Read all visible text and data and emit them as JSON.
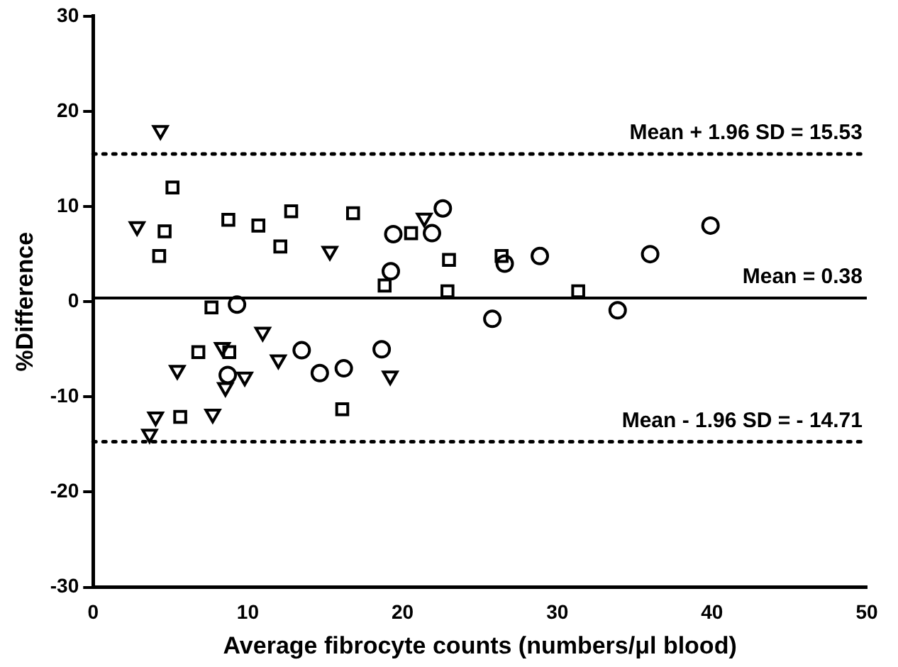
{
  "chart_data": {
    "type": "scatter",
    "xlabel": "Average fibrocyte counts (numbers/μl blood)",
    "ylabel": "%Difference",
    "xlim": [
      0,
      50
    ],
    "xticks": [
      0,
      10,
      20,
      30,
      40,
      50
    ],
    "ylim": [
      -30,
      30
    ],
    "yticks": [
      -30,
      -20,
      -10,
      0,
      10,
      20,
      30
    ],
    "grid": false,
    "legend": false,
    "series": [
      {
        "marker": "triangle",
        "color": "#000000",
        "x": [
          4.35,
          2.84,
          15.3,
          21.4,
          10.96,
          5.44,
          8.35,
          8.55,
          9.8,
          11.97,
          19.2,
          7.73,
          4.04,
          3.65
        ],
        "values": [
          18.0,
          7.9,
          5.3,
          8.8,
          -3.2,
          -7.2,
          -4.8,
          -9.0,
          -7.9,
          -6.1,
          -7.8,
          -11.8,
          -12.1,
          -13.9
        ]
      },
      {
        "marker": "square",
        "color": "#000000",
        "x": [
          5.13,
          4.62,
          4.27,
          8.74,
          10.68,
          12.8,
          16.8,
          12.1,
          20.55,
          18.84,
          23.0,
          22.9,
          26.4,
          31.35,
          7.65,
          6.8,
          8.8,
          5.63,
          16.1
        ],
        "values": [
          12.0,
          7.4,
          4.8,
          8.6,
          8.0,
          9.5,
          9.3,
          5.8,
          7.2,
          1.7,
          4.4,
          1.1,
          4.8,
          1.1,
          -0.6,
          -5.3,
          -5.3,
          -12.1,
          -11.3
        ]
      },
      {
        "marker": "circle",
        "color": "#000000",
        "x": [
          9.3,
          8.7,
          13.48,
          14.65,
          16.2,
          18.65,
          19.24,
          19.4,
          21.9,
          22.6,
          26.6,
          28.87,
          25.8,
          33.9,
          36.0,
          39.9
        ],
        "values": [
          -0.3,
          -7.7,
          -5.1,
          -7.5,
          -7.0,
          -5.0,
          3.2,
          7.1,
          7.2,
          9.8,
          4.0,
          4.8,
          -1.8,
          -0.9,
          5.0,
          8.0
        ]
      }
    ],
    "ref_lines": [
      {
        "axis": "y",
        "value": 15.53,
        "label": "Mean + 1.96 SD = 15.53",
        "line_style": "dotted",
        "color": "#000000"
      },
      {
        "axis": "y",
        "value": 0.38,
        "label": "Mean = 0.38",
        "line_style": "solid",
        "color": "#000000"
      },
      {
        "axis": "y",
        "value": -14.71,
        "label": "Mean - 1.96 SD = - 14.71",
        "line_style": "dotted",
        "color": "#000000"
      }
    ]
  }
}
